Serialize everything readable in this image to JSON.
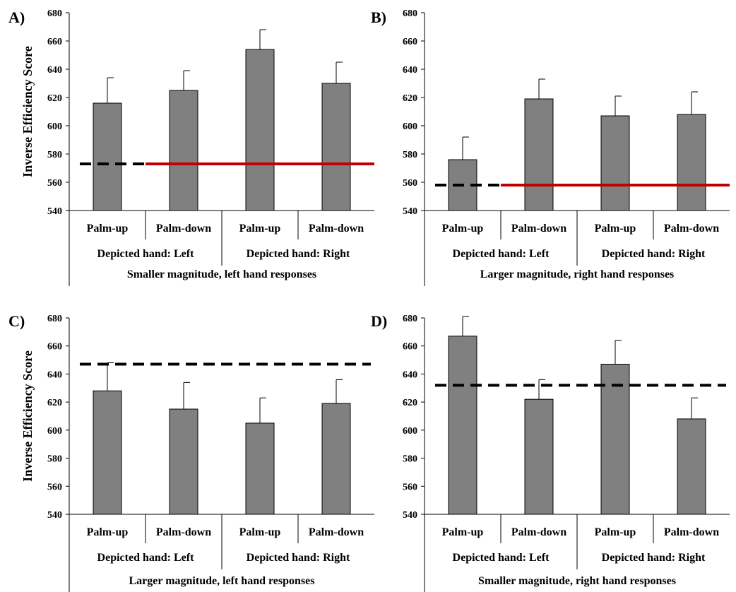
{
  "chart_data": [
    {
      "panel": "A)",
      "type": "bar",
      "ylabel": "Inverse Efficiency Score",
      "ylim": [
        540,
        680
      ],
      "yticks": [
        540,
        560,
        580,
        600,
        620,
        640,
        660,
        680
      ],
      "categories": [
        "Palm-up",
        "Palm-down",
        "Palm-up",
        "Palm-down"
      ],
      "groups": [
        "Depicted hand: Left",
        "Depicted hand: Right"
      ],
      "condition": "Smaller magnitude, left hand responses",
      "values": [
        616,
        625,
        654,
        630
      ],
      "errors": [
        18,
        14,
        14,
        15
      ],
      "reference": {
        "value": 573,
        "color": "#c00000"
      }
    },
    {
      "panel": "B)",
      "type": "bar",
      "ylabel": "",
      "ylim": [
        540,
        680
      ],
      "yticks": [
        540,
        560,
        580,
        600,
        620,
        640,
        660,
        680
      ],
      "categories": [
        "Palm-up",
        "Palm-down",
        "Palm-up",
        "Palm-down"
      ],
      "groups": [
        "Depicted hand: Left",
        "Depicted hand: Right"
      ],
      "condition": "Larger magnitude, right hand responses",
      "values": [
        576,
        619,
        607,
        608
      ],
      "errors": [
        16,
        14,
        14,
        16
      ],
      "reference": {
        "value": 558,
        "color": "#c00000"
      }
    },
    {
      "panel": "C)",
      "type": "bar",
      "ylabel": "Inverse Efficiency Score",
      "ylim": [
        540,
        680
      ],
      "yticks": [
        540,
        560,
        580,
        600,
        620,
        640,
        660,
        680
      ],
      "categories": [
        "Palm-up",
        "Palm-down",
        "Palm-up",
        "Palm-down"
      ],
      "groups": [
        "Depicted hand: Left",
        "Depicted hand: Right"
      ],
      "condition": "Larger magnitude, left hand responses",
      "values": [
        628,
        615,
        605,
        619
      ],
      "errors": [
        20,
        19,
        18,
        17
      ],
      "reference": {
        "value": 647,
        "color": "#000000"
      }
    },
    {
      "panel": "D)",
      "type": "bar",
      "ylabel": "",
      "ylim": [
        540,
        680
      ],
      "yticks": [
        540,
        560,
        580,
        600,
        620,
        640,
        660,
        680
      ],
      "categories": [
        "Palm-up",
        "Palm-down",
        "Palm-up",
        "Palm-down"
      ],
      "groups": [
        "Depicted hand: Left",
        "Depicted hand: Right"
      ],
      "condition": "Smaller magnitude, right hand responses",
      "values": [
        667,
        622,
        647,
        608
      ],
      "errors": [
        14,
        14,
        17,
        15
      ],
      "reference": {
        "value": 632,
        "color": "#000000"
      }
    }
  ],
  "colors": {
    "bar": "#808080",
    "bar_stroke": "#000000",
    "red_line": "#c00000",
    "dashed_line": "#000000"
  }
}
